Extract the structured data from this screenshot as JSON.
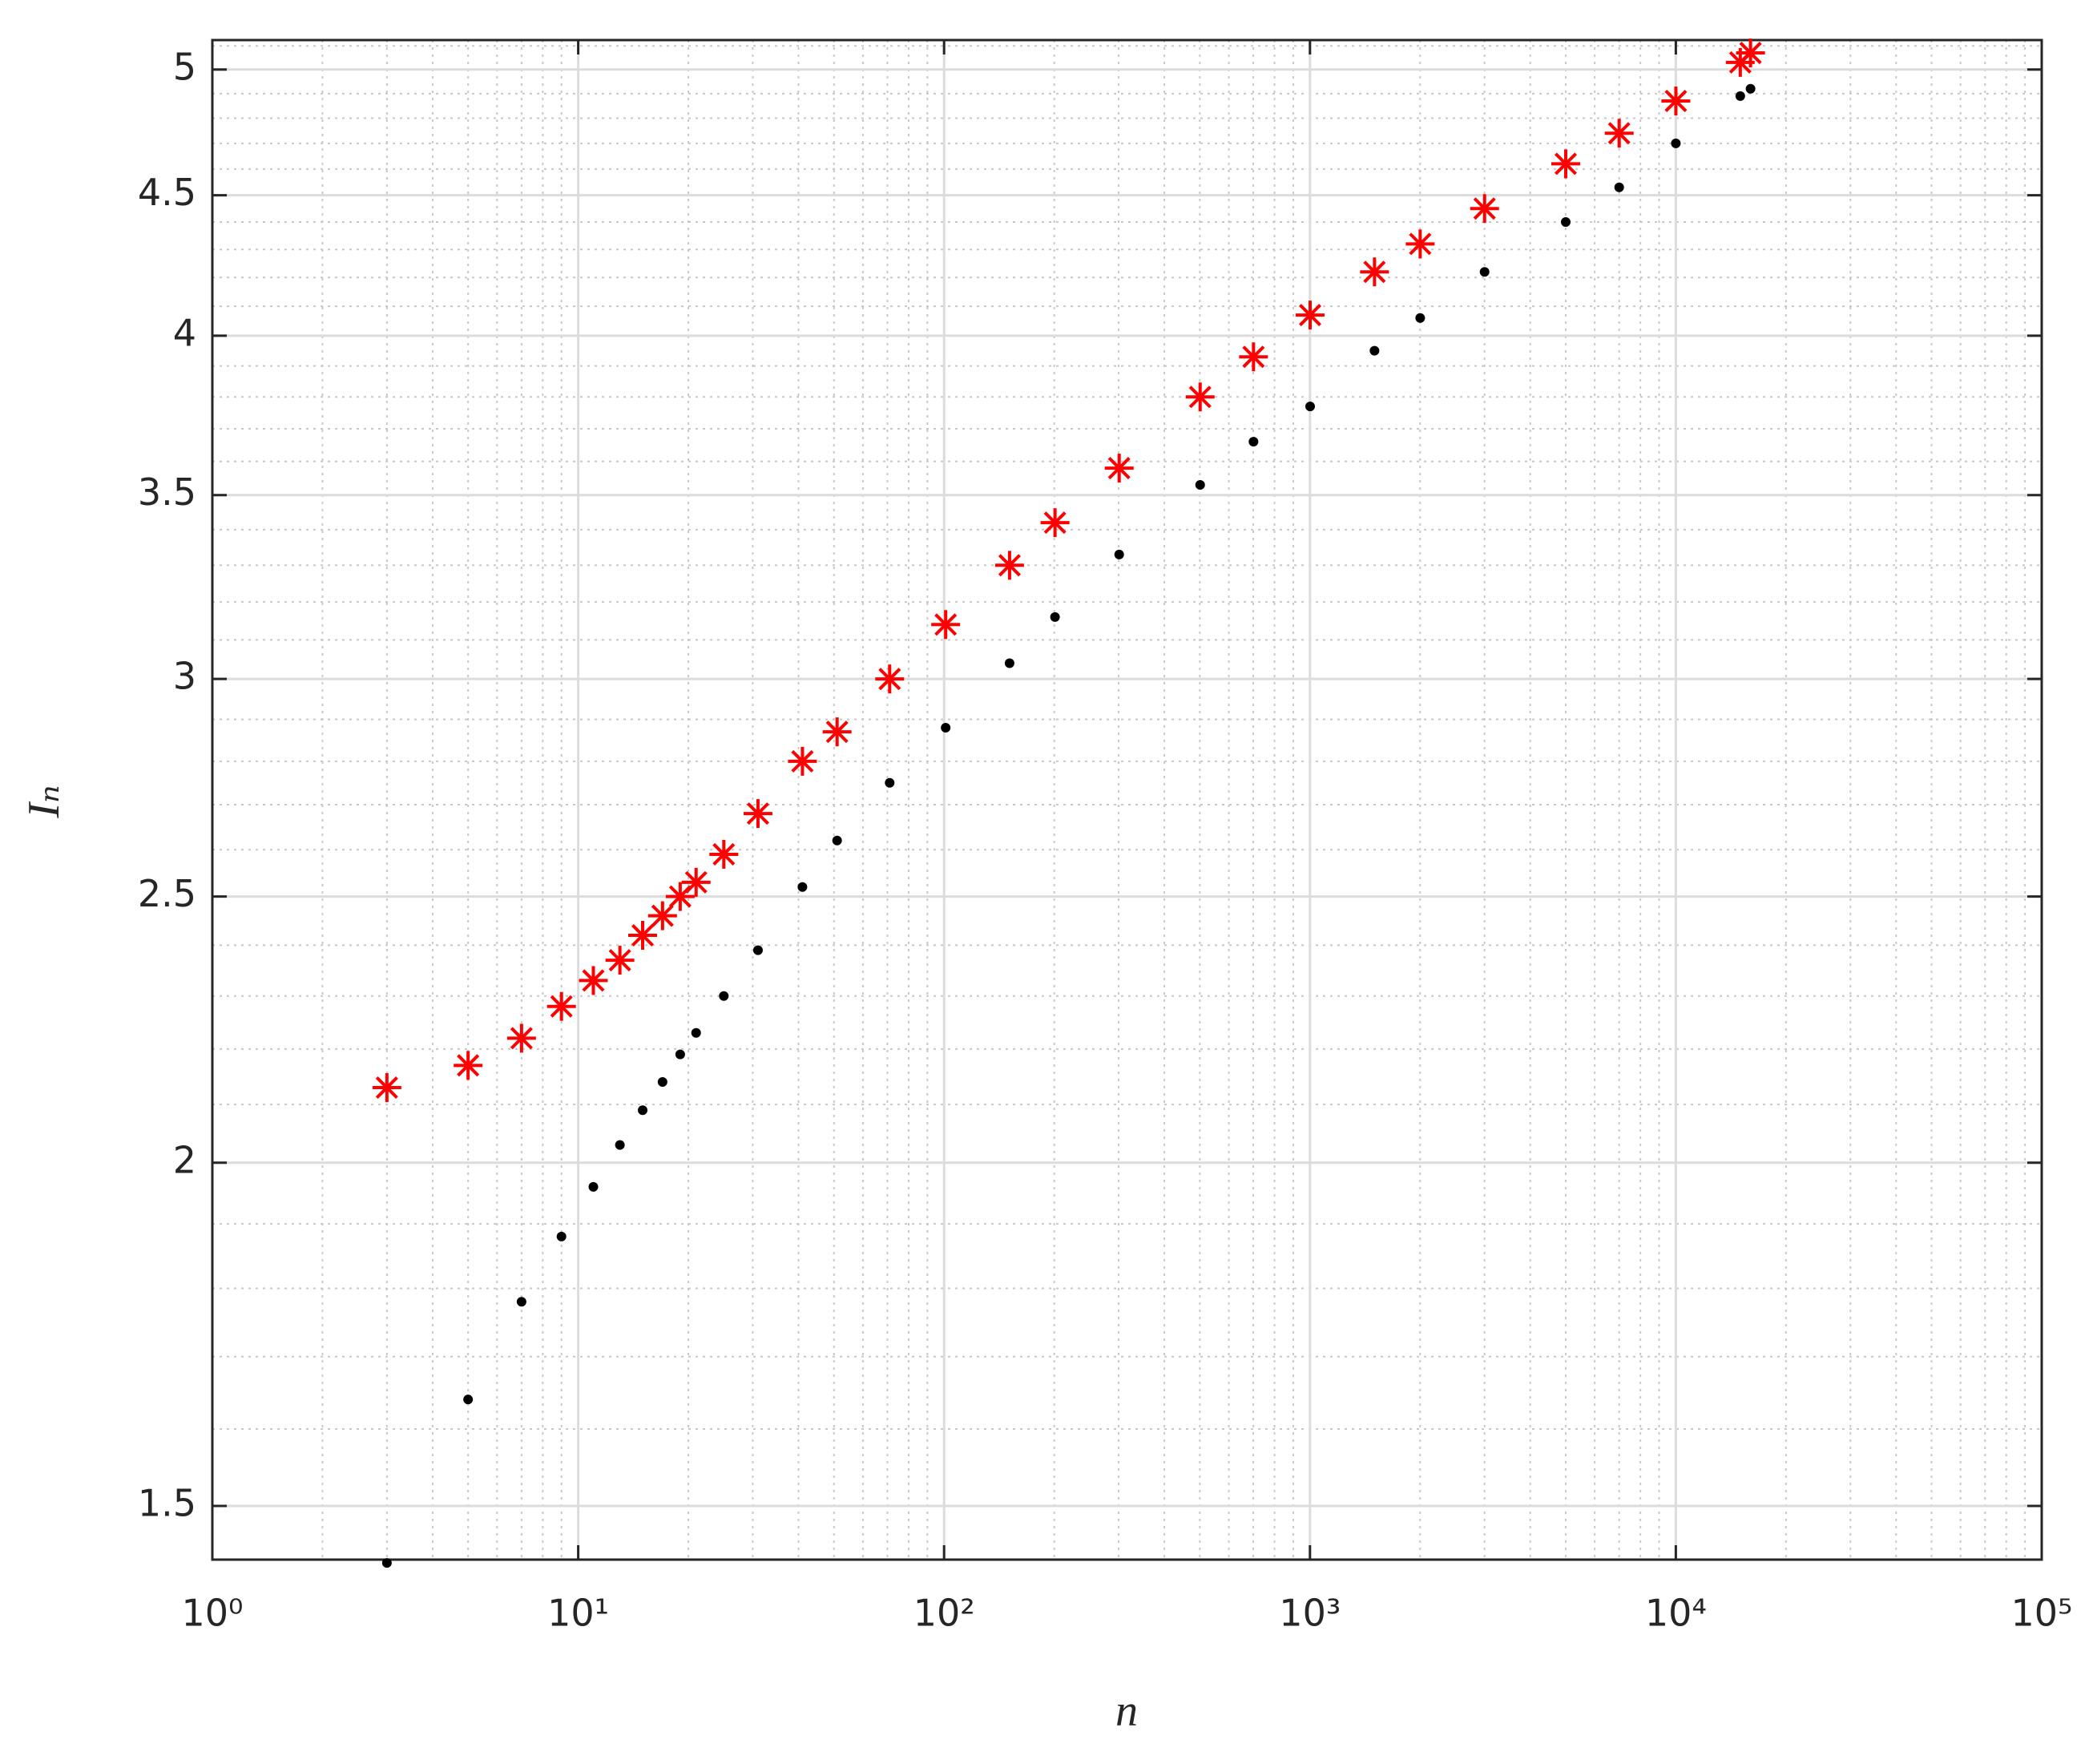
{
  "chart_data": {
    "type": "scatter",
    "x_label": "n",
    "y_label": "Iₙ",
    "xscale": "log",
    "yscale": "log",
    "grid": true,
    "minor_grid": true,
    "xlim": [
      1,
      100000
    ],
    "xticks": [
      {
        "value": 1,
        "label": "10⁰"
      },
      {
        "value": 10,
        "label": "10¹"
      },
      {
        "value": 100,
        "label": "10²"
      },
      {
        "value": 1000,
        "label": "10³"
      },
      {
        "value": 10000,
        "label": "10⁴"
      },
      {
        "value": 100000,
        "label": "10⁵"
      }
    ],
    "ylim": [
      1.434,
      5.125
    ],
    "yticks": [
      1.5,
      2,
      2.5,
      3,
      3.5,
      4,
      4.5,
      5
    ],
    "series": [
      {
        "color": "#ff0000",
        "marker": "asterisk",
        "x": [
          3,
          5,
          7,
          9,
          11,
          13,
          15,
          17,
          19,
          21,
          25,
          31,
          41,
          51,
          71,
          101,
          151,
          201,
          301,
          501,
          701,
          1001,
          1501,
          2001,
          3001,
          5001,
          7001,
          10001,
          15001,
          16001
        ],
        "values": [
          2.13,
          2.17,
          2.22,
          2.28,
          2.33,
          2.37,
          2.42,
          2.46,
          2.5,
          2.53,
          2.59,
          2.68,
          2.8,
          2.87,
          3.0,
          3.14,
          3.3,
          3.42,
          3.58,
          3.8,
          3.93,
          4.07,
          4.22,
          4.32,
          4.45,
          4.62,
          4.74,
          4.87,
          5.03,
          5.07
        ]
      },
      {
        "color": "#000000",
        "marker": "dot",
        "x": [
          3,
          5,
          7,
          9,
          11,
          13,
          15,
          17,
          19,
          21,
          25,
          31,
          41,
          51,
          71,
          101,
          151,
          201,
          301,
          501,
          701,
          1001,
          1501,
          2001,
          3001,
          5001,
          7001,
          10001,
          15001,
          16001
        ],
        "values": [
          1.43,
          1.64,
          1.78,
          1.88,
          1.96,
          2.03,
          2.09,
          2.14,
          2.19,
          2.23,
          2.3,
          2.39,
          2.52,
          2.62,
          2.75,
          2.88,
          3.04,
          3.16,
          3.33,
          3.53,
          3.66,
          3.77,
          3.95,
          4.06,
          4.22,
          4.4,
          4.53,
          4.7,
          4.89,
          4.92
        ]
      }
    ]
  }
}
